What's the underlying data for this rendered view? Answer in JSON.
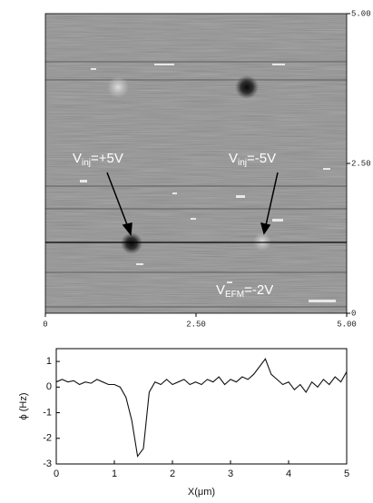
{
  "chart_data": [
    {
      "type": "image",
      "xlim": [
        0,
        5
      ],
      "ylim": [
        0,
        5
      ],
      "xticks": [
        0,
        {
          "value": 2.5,
          "label": "2.50"
        },
        {
          "value": 5,
          "label": "5.00"
        }
      ],
      "yticks": [
        0,
        {
          "value": 2.5,
          "label": "2.50"
        },
        {
          "value": 5,
          "label": "5.00"
        }
      ],
      "annotations": [
        {
          "main": "V",
          "sub": "inj",
          "rest": "=+5V"
        },
        {
          "main": "V",
          "sub": "inj",
          "rest": "=-5V"
        },
        {
          "main": "V",
          "sub": "EFM",
          "rest": "=-2V"
        }
      ]
    },
    {
      "type": "line",
      "xlabel": "X(μm)",
      "ylabel": "ϕ (Hz)",
      "xlim": [
        0,
        5
      ],
      "ylim": [
        -3,
        1.5
      ],
      "xticks": [
        0,
        1,
        2,
        3,
        4,
        5
      ],
      "yticks": [
        -3,
        -2,
        -1,
        0,
        1
      ],
      "series": [
        {
          "color": "#111111",
          "x": [
            0,
            0.1,
            0.2,
            0.3,
            0.4,
            0.5,
            0.6,
            0.7,
            0.8,
            0.9,
            1.0,
            1.1,
            1.2,
            1.3,
            1.4,
            1.5,
            1.6,
            1.7,
            1.8,
            1.9,
            2.0,
            2.1,
            2.2,
            2.3,
            2.4,
            2.5,
            2.6,
            2.7,
            2.8,
            2.9,
            3.0,
            3.1,
            3.2,
            3.3,
            3.4,
            3.5,
            3.6,
            3.7,
            3.8,
            3.9,
            4.0,
            4.1,
            4.2,
            4.3,
            4.4,
            4.5,
            4.6,
            4.7,
            4.8,
            4.9,
            5.0
          ],
          "values": [
            0.2,
            0.3,
            0.2,
            0.25,
            0.1,
            0.2,
            0.15,
            0.3,
            0.2,
            0.1,
            0.1,
            0,
            -0.4,
            -1.3,
            -2.7,
            -2.4,
            -0.2,
            0.2,
            0.1,
            0.3,
            0.1,
            0.2,
            0.3,
            0.1,
            0.2,
            0.1,
            0.3,
            0.2,
            0.4,
            0.1,
            0.3,
            0.2,
            0.4,
            0.3,
            0.5,
            0.8,
            1.1,
            0.5,
            0.3,
            0.1,
            0.2,
            -0.1,
            0.1,
            -0.2,
            0.2,
            0,
            0.3,
            0.1,
            0.4,
            0.2,
            0.6
          ]
        }
      ]
    }
  ]
}
